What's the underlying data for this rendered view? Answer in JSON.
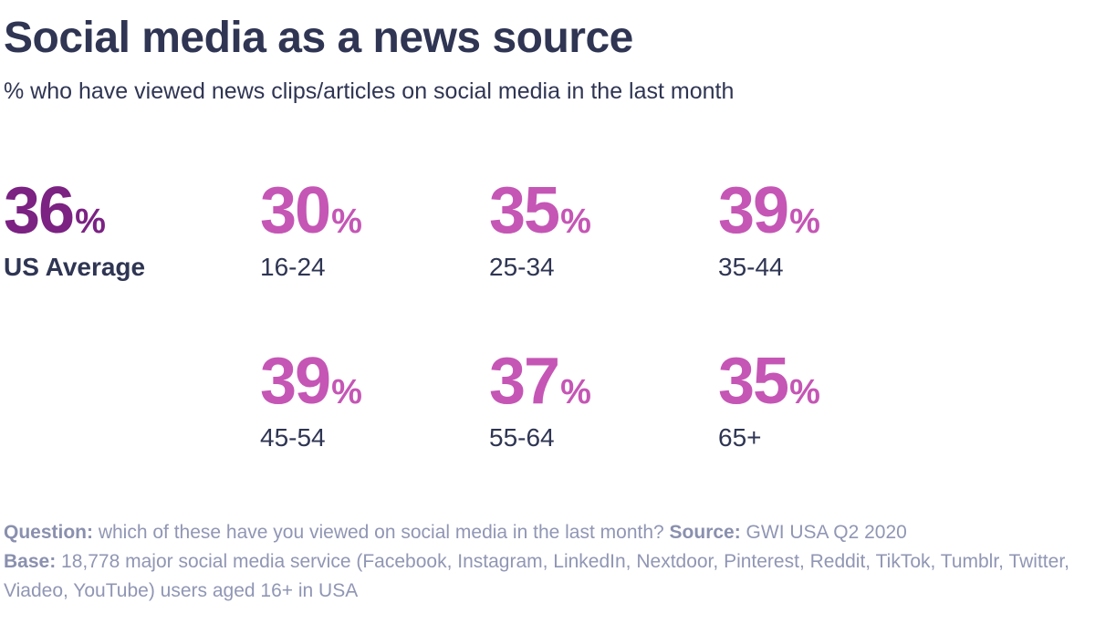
{
  "title": "Social media as a news source",
  "subtitle": "% who have viewed news clips/articles on social media in the last month",
  "colors": {
    "average": "#7b2283",
    "group": "#c556b5",
    "text": "#2f3553",
    "footer": "#9096b4"
  },
  "chart_data": {
    "type": "table",
    "unit": "%",
    "average": {
      "label": "US Average",
      "value": 36
    },
    "categories": [
      "16-24",
      "25-34",
      "35-44",
      "45-54",
      "55-64",
      "65+"
    ],
    "values": [
      30,
      35,
      39,
      39,
      37,
      35
    ]
  },
  "footer": {
    "question_label": "Question:",
    "question_text": " which of these have you viewed on social media in the last month? ",
    "source_label": "Source:",
    "source_text": " GWI USA Q2 2020",
    "base_label": "Base:",
    "base_text": " 18,778 major social media service (Facebook, Instagram, LinkedIn, Nextdoor, Pinterest, Reddit, TikTok, Tumblr, Twitter, Viadeo, YouTube) users aged 16+ in USA"
  }
}
